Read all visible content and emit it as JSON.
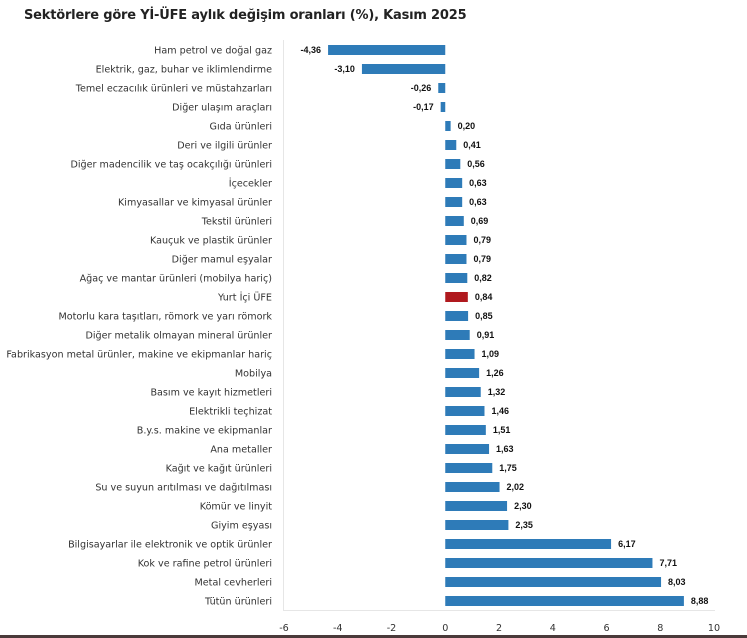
{
  "chart_data": {
    "type": "bar",
    "orientation": "horizontal",
    "title": "Sektörlere göre Yİ-ÜFE aylık değişim oranları (%), Kasım 2025",
    "xlabel": "",
    "ylabel": "",
    "xlim": [
      -6,
      10
    ],
    "xticks": [
      -6,
      -4,
      -2,
      0,
      2,
      4,
      6,
      8,
      10
    ],
    "grid": false,
    "legend": "none",
    "colors": {
      "default": "#2e7bb8",
      "highlight": "#b0191e"
    },
    "highlight_category": "Yurt İçi ÜFE",
    "categories": [
      "Ham petrol ve doğal gaz",
      "Elektrik, gaz, buhar ve iklimlendirme",
      "Temel eczacılık ürünleri ve müstahzarları",
      "Diğer ulaşım araçları",
      "Gıda ürünleri",
      "Deri ve ilgili ürünler",
      "Diğer madencilik ve taş ocakçılığı ürünleri",
      "İçecekler",
      "Kimyasallar ve kimyasal ürünler",
      "Tekstil ürünleri",
      "Kauçuk ve plastik ürünler",
      "Diğer mamul eşyalar",
      "Ağaç ve mantar ürünleri (mobilya hariç)",
      "Yurt İçi ÜFE",
      "Motorlu kara taşıtları, römork ve yarı römork",
      "Diğer metalik olmayan mineral ürünler",
      "Fabrikasyon metal ürünler, makine ve ekipmanlar hariç",
      "Mobilya",
      "Basım ve kayıt hizmetleri",
      "Elektrikli teçhizat",
      "B.y.s. makine ve ekipmanlar",
      "Ana metaller",
      "Kağıt ve kağıt ürünleri",
      "Su ve suyun arıtılması ve dağıtılması",
      "Kömür ve linyit",
      "Giyim eşyası",
      "Bilgisayarlar ile elektronik ve optik ürünler",
      "Kok ve rafine petrol ürünleri",
      "Metal cevherleri",
      "Tütün ürünleri"
    ],
    "values": [
      -4.36,
      -3.1,
      -0.26,
      -0.17,
      0.2,
      0.41,
      0.56,
      0.63,
      0.63,
      0.69,
      0.79,
      0.79,
      0.82,
      0.84,
      0.85,
      0.91,
      1.09,
      1.26,
      1.32,
      1.46,
      1.51,
      1.63,
      1.75,
      2.02,
      2.3,
      2.35,
      6.17,
      7.71,
      8.03,
      8.88
    ],
    "value_labels": [
      "-4,36",
      "-3,10",
      "-0,26",
      "-0,17",
      "0,20",
      "0,41",
      "0,56",
      "0,63",
      "0,63",
      "0,69",
      "0,79",
      "0,79",
      "0,82",
      "0,84",
      "0,85",
      "0,91",
      "1,09",
      "1,26",
      "1,32",
      "1,46",
      "1,51",
      "1,63",
      "1,75",
      "2,02",
      "2,30",
      "2,35",
      "6,17",
      "7,71",
      "8,03",
      "8,88"
    ],
    "xtick_labels": [
      "-6",
      "-4",
      "-2",
      "0",
      "2",
      "4",
      "6",
      "8",
      "10"
    ]
  }
}
